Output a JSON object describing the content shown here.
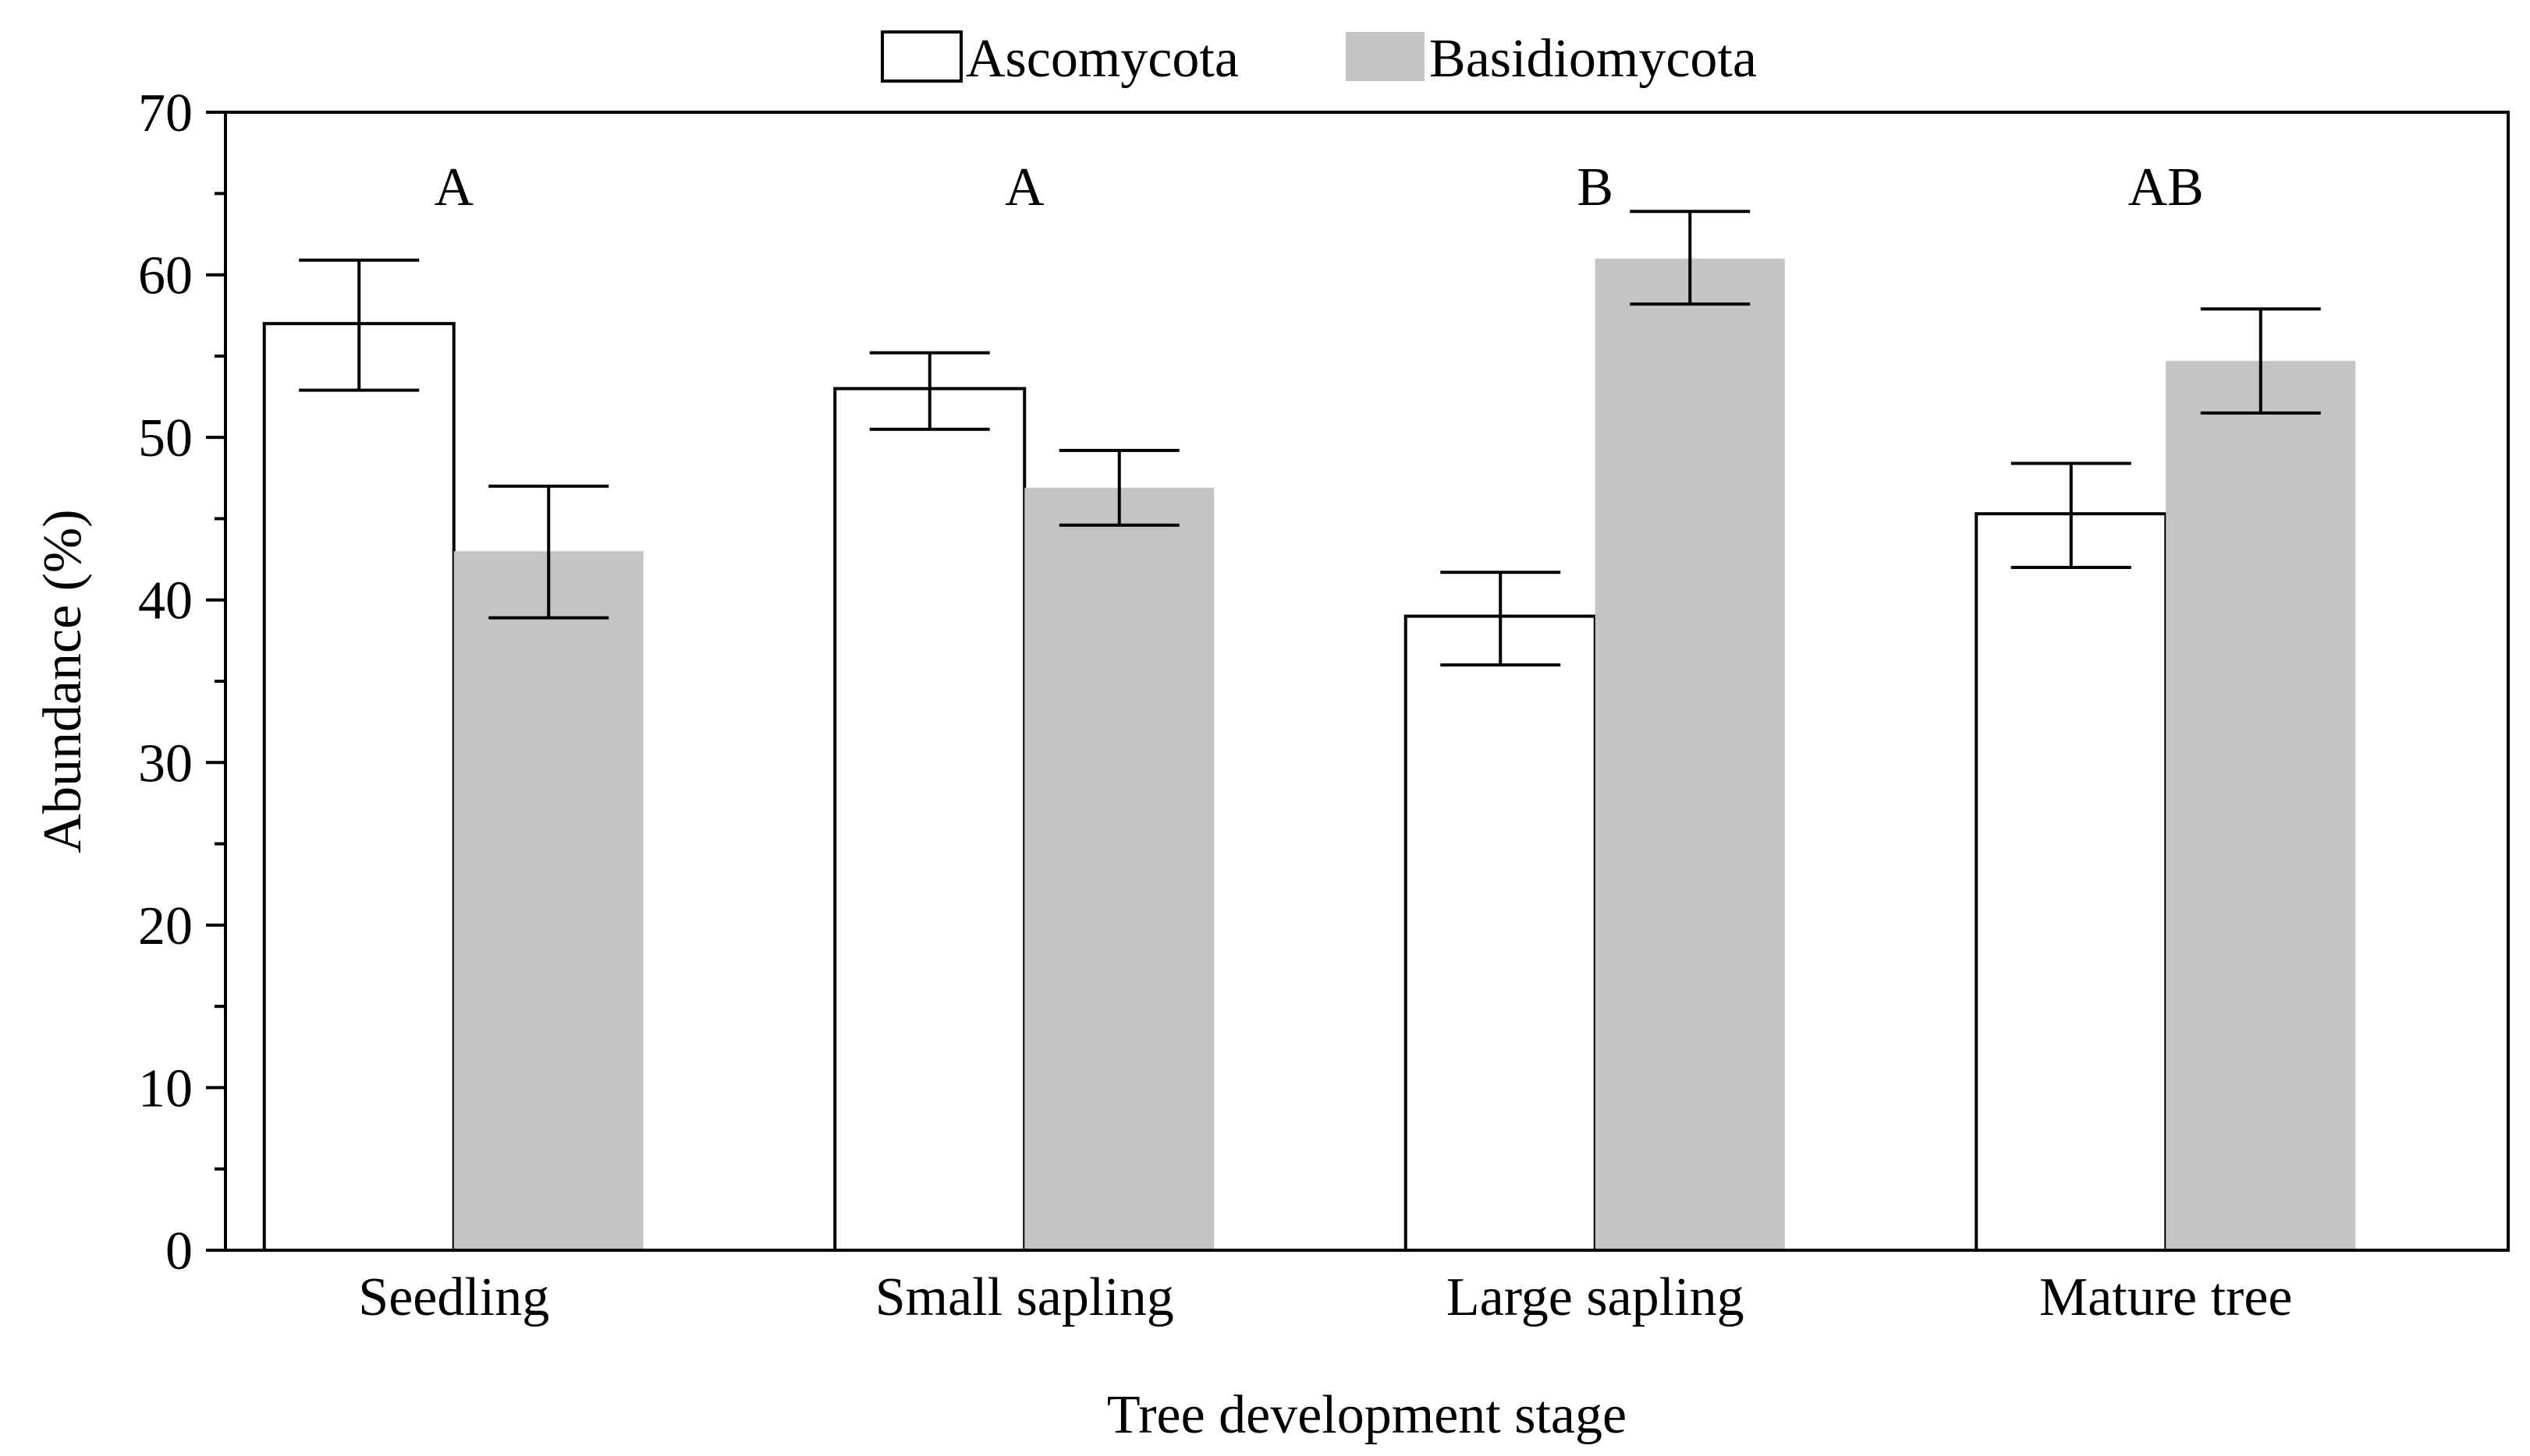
{
  "chart_data": {
    "type": "bar",
    "title": "",
    "xlabel": "Tree development stage",
    "ylabel": "Abundance (%)",
    "ylim": [
      0,
      70
    ],
    "yticks": [
      0,
      10,
      20,
      30,
      40,
      50,
      60,
      70
    ],
    "categories": [
      "Seedling",
      "Small sapling",
      "Large sapling",
      "Mature tree"
    ],
    "series": [
      {
        "name": "Ascomycota",
        "color": "#ffffff",
        "values": [
          57,
          53,
          39,
          45.3
        ],
        "error_low": [
          52.9,
          50.5,
          36,
          42
        ],
        "error_high": [
          60.9,
          55.2,
          41.7,
          48.4
        ]
      },
      {
        "name": "Basidiomycota",
        "color": "#c4c4c4",
        "values": [
          43,
          46.9,
          61,
          54.7
        ],
        "error_low": [
          38.9,
          44.6,
          58.2,
          51.5
        ],
        "error_high": [
          47,
          49.2,
          63.9,
          57.9
        ]
      }
    ],
    "significance_labels": [
      "A",
      "A",
      "B",
      "AB"
    ],
    "legend_position": "top-center",
    "grid": false
  }
}
